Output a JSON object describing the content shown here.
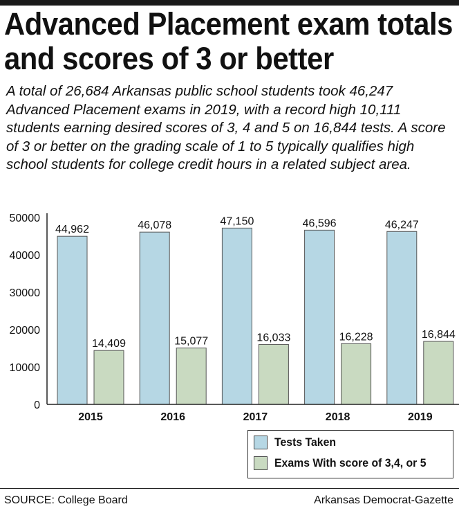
{
  "headline": {
    "line1": "Advanced Placement exam totals",
    "line2": "and scores of 3 or better"
  },
  "dek": "A total of 26,684 Arkansas public school students took 46,247 Advanced Placement exams in 2019, with a record high 10,111 students earning desired scores of 3, 4 and 5 on 16,844 tests. A score of 3 or better on the grading scale of 1 to 5 typically qualifies high school students for college credit hours in a related subject area.",
  "footer": {
    "source": "SOURCE: College Board",
    "credit": "Arkansas Democrat-Gazette"
  },
  "chart_data": {
    "type": "bar",
    "title": "",
    "xlabel": "",
    "ylabel": "",
    "categories": [
      "2015",
      "2016",
      "2017",
      "2018",
      "2019"
    ],
    "series": [
      {
        "name": "Tests Taken",
        "values": [
          44962,
          46078,
          47150,
          46596,
          46247
        ],
        "labels": [
          "44,962",
          "46,078",
          "47,150",
          "46,596",
          "46,247"
        ],
        "color": "#b6d7e4"
      },
      {
        "name": "Exams With score of 3,4, or 5",
        "values": [
          14409,
          15077,
          16033,
          16228,
          16844
        ],
        "labels": [
          "14,409",
          "15,077",
          "16,033",
          "16,228",
          "16,844"
        ],
        "color": "#c9dac1"
      }
    ],
    "ylim": [
      0,
      50000
    ],
    "yticks": [
      0,
      10000,
      20000,
      30000,
      40000,
      50000
    ],
    "grid": false,
    "legend_position": "bottom-right"
  }
}
